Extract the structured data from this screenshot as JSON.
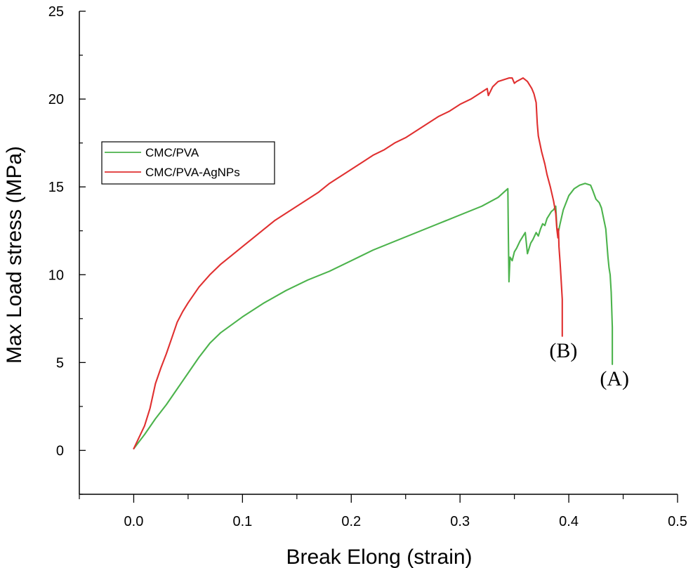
{
  "chart_data": {
    "type": "line",
    "xlabel": "Break Elong (strain)",
    "ylabel": "Max Load stress (MPa)",
    "xlim": [
      -0.05,
      0.5
    ],
    "ylim": [
      -2.5,
      25
    ],
    "x_ticks": [
      0.0,
      0.1,
      0.2,
      0.3,
      0.4,
      0.5
    ],
    "x_tick_labels": [
      "0.0",
      "0.1",
      "0.2",
      "0.3",
      "0.4",
      "0.5"
    ],
    "y_ticks": [
      0,
      5,
      10,
      15,
      20,
      25
    ],
    "y_tick_labels": [
      "0",
      "5",
      "10",
      "15",
      "20",
      "25"
    ],
    "grid": false,
    "legend_position": "upper-left",
    "series": [
      {
        "name": "CMC/PVA",
        "color": "#4cb34c",
        "x": [
          0.0,
          0.01,
          0.02,
          0.03,
          0.04,
          0.05,
          0.06,
          0.07,
          0.08,
          0.1,
          0.12,
          0.14,
          0.16,
          0.18,
          0.2,
          0.22,
          0.24,
          0.26,
          0.28,
          0.3,
          0.32,
          0.335,
          0.344,
          0.3445,
          0.345,
          0.346,
          0.348,
          0.35,
          0.352,
          0.355,
          0.358,
          0.36,
          0.362,
          0.363,
          0.364,
          0.365,
          0.367,
          0.37,
          0.372,
          0.374,
          0.376,
          0.378,
          0.38,
          0.382,
          0.384,
          0.386,
          0.388,
          0.389,
          0.39,
          0.392,
          0.395,
          0.4,
          0.405,
          0.41,
          0.415,
          0.42,
          0.422,
          0.425,
          0.428,
          0.43,
          0.432,
          0.434,
          0.436,
          0.437,
          0.438,
          0.439,
          0.44,
          0.44,
          0.44
        ],
        "y": [
          0.1,
          0.9,
          1.8,
          2.6,
          3.5,
          4.4,
          5.3,
          6.1,
          6.7,
          7.6,
          8.4,
          9.1,
          9.7,
          10.2,
          10.8,
          11.4,
          11.9,
          12.4,
          12.9,
          13.4,
          13.9,
          14.4,
          14.9,
          12.0,
          9.6,
          11.0,
          10.8,
          11.3,
          11.5,
          11.9,
          12.2,
          12.4,
          11.2,
          11.4,
          11.6,
          11.8,
          12.0,
          12.4,
          12.2,
          12.6,
          12.9,
          12.8,
          13.2,
          13.4,
          13.6,
          13.7,
          13.9,
          12.7,
          12.3,
          12.9,
          13.7,
          14.5,
          14.9,
          15.1,
          15.2,
          15.1,
          14.8,
          14.3,
          14.1,
          13.8,
          13.2,
          12.6,
          11.0,
          10.4,
          10.0,
          9.0,
          7.0,
          5.7,
          4.9
        ]
      },
      {
        "name": "CMC/PVA-AgNPs",
        "color": "#e03030",
        "x": [
          0.0,
          0.01,
          0.015,
          0.02,
          0.025,
          0.03,
          0.035,
          0.04,
          0.045,
          0.05,
          0.06,
          0.07,
          0.08,
          0.09,
          0.1,
          0.11,
          0.12,
          0.13,
          0.14,
          0.15,
          0.16,
          0.17,
          0.18,
          0.19,
          0.2,
          0.21,
          0.22,
          0.23,
          0.24,
          0.25,
          0.26,
          0.27,
          0.28,
          0.29,
          0.3,
          0.31,
          0.32,
          0.325,
          0.326,
          0.33,
          0.335,
          0.34,
          0.345,
          0.348,
          0.35,
          0.352,
          0.355,
          0.358,
          0.36,
          0.362,
          0.364,
          0.366,
          0.368,
          0.37,
          0.371,
          0.372,
          0.375,
          0.378,
          0.38,
          0.383,
          0.386,
          0.388,
          0.389,
          0.39,
          0.3905,
          0.391,
          0.392,
          0.393,
          0.394,
          0.394,
          0.394
        ],
        "y": [
          0.1,
          1.4,
          2.4,
          3.8,
          4.7,
          5.5,
          6.4,
          7.3,
          7.9,
          8.4,
          9.3,
          10.0,
          10.6,
          11.1,
          11.6,
          12.1,
          12.6,
          13.1,
          13.5,
          13.9,
          14.3,
          14.7,
          15.2,
          15.6,
          16.0,
          16.4,
          16.8,
          17.1,
          17.5,
          17.8,
          18.2,
          18.6,
          19.0,
          19.3,
          19.7,
          20.0,
          20.4,
          20.6,
          20.2,
          20.7,
          21.0,
          21.1,
          21.2,
          21.2,
          20.9,
          21.0,
          21.1,
          21.2,
          21.1,
          21.0,
          20.8,
          20.6,
          20.3,
          19.8,
          18.6,
          17.9,
          17.0,
          16.3,
          15.7,
          15.0,
          14.2,
          13.5,
          12.6,
          12.1,
          12.6,
          11.6,
          10.7,
          9.7,
          8.6,
          7.5,
          6.5
        ]
      }
    ],
    "annotations": [
      {
        "text": "(B)",
        "x": 0.395,
        "y": 5.3
      },
      {
        "text": "(A)",
        "x": 0.442,
        "y": 3.7
      }
    ]
  }
}
